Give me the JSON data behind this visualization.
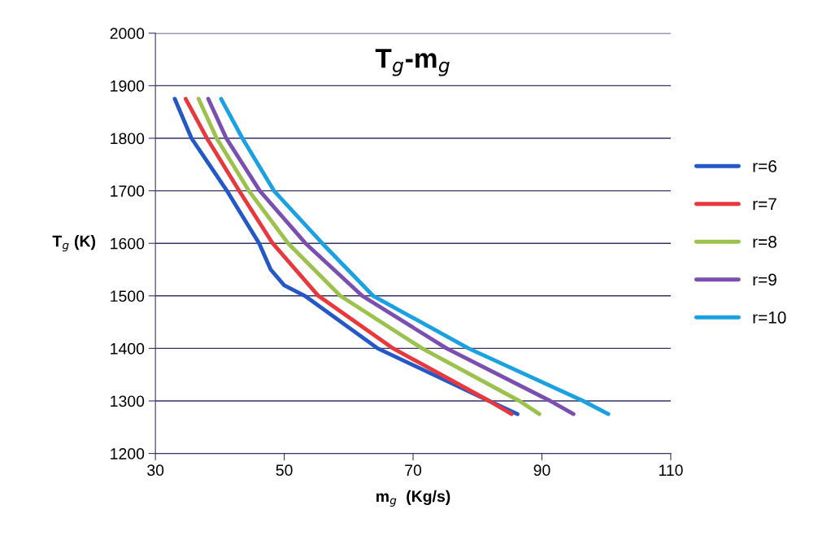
{
  "chart_data": {
    "type": "line",
    "title": "T$_{g}$-m$_{g}$",
    "xlabel": "m$_{g}$  (Kg/s)",
    "ylabel": "T$_{g}$ (K)",
    "xlim": [
      30,
      110
    ],
    "xticks": [
      30,
      50,
      70,
      90,
      110
    ],
    "ylim": [
      1200,
      2000
    ],
    "yticks": [
      1200,
      1300,
      1400,
      1500,
      1600,
      1700,
      1800,
      1900,
      2000
    ],
    "grid": "y",
    "legend": "right",
    "marker": "none",
    "line_style": "solid",
    "series": [
      {
        "name": "r=6",
        "color": "#2458c6",
        "x": [
          33,
          35.6,
          41.1,
          46.1,
          47.9,
          50,
          53.2,
          64.5,
          81.8,
          86.2
        ],
        "values": [
          1875,
          1800,
          1700,
          1600,
          1550,
          1520,
          1500,
          1400,
          1300,
          1275
        ]
      },
      {
        "name": "r=7",
        "color": "#e8383d",
        "x": [
          34.7,
          38.0,
          43.0,
          48.2,
          55.3,
          66.9,
          81.8,
          85.3
        ],
        "values": [
          1875,
          1800,
          1700,
          1600,
          1500,
          1400,
          1300,
          1275
        ]
      },
      {
        "name": "r=8",
        "color": "#9bc24d",
        "x": [
          36.7,
          39.5,
          44.5,
          50.6,
          58.7,
          71.4,
          86.5,
          89.6
        ],
        "values": [
          1875,
          1800,
          1700,
          1600,
          1500,
          1400,
          1300,
          1275
        ]
      },
      {
        "name": "r=9",
        "color": "#7b4fb0",
        "x": [
          38.2,
          41.0,
          46.2,
          53.3,
          62.1,
          75.2,
          91.3,
          94.9
        ],
        "values": [
          1875,
          1800,
          1700,
          1600,
          1500,
          1400,
          1300,
          1275
        ]
      },
      {
        "name": "r=10",
        "color": "#1ba1e2",
        "x": [
          40.2,
          43.5,
          48.4,
          55.9,
          63.8,
          78.6,
          96.4,
          100.3
        ],
        "values": [
          1875,
          1800,
          1700,
          1600,
          1500,
          1400,
          1300,
          1275
        ]
      }
    ]
  }
}
